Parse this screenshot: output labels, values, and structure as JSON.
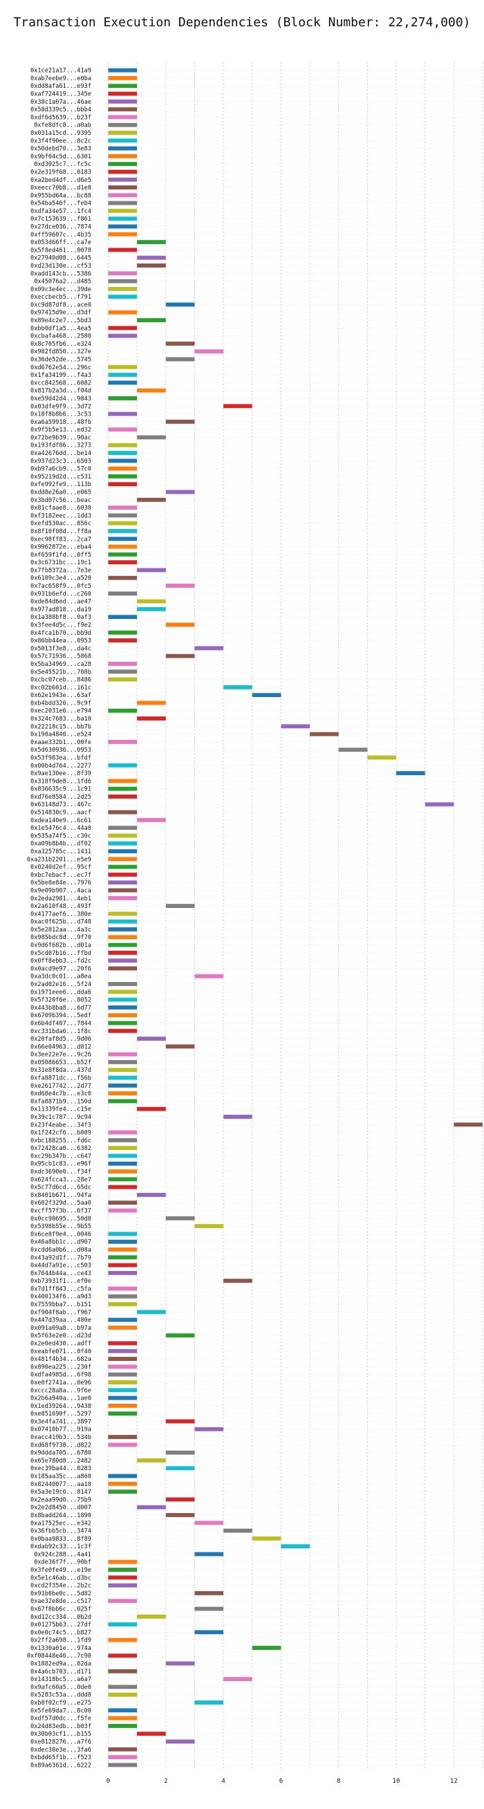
{
  "chart_data": {
    "type": "bar",
    "orientation": "horizontal",
    "title": "Transaction Execution Dependencies (Block Number: 22,274,000)",
    "xlabel": "",
    "ylabel": "",
    "xlim": [
      -0.3,
      13.0
    ],
    "xticks": [
      0,
      2,
      4,
      6,
      8,
      10,
      12
    ],
    "grid": true,
    "legend": "none",
    "bar_length": 1,
    "colors": [
      "#1f77b4",
      "#ff7f0e",
      "#2ca02c",
      "#d62728",
      "#9467bd",
      "#8c564b",
      "#e377c2",
      "#7f7f7f",
      "#bcbd22",
      "#17becf"
    ],
    "transactions": [
      {
        "tx": "0x1ce21a17...41a9",
        "start": 0
      },
      {
        "tx": "0xab7eebe9...e0ba",
        "start": 0
      },
      {
        "tx": "0xdd8afa61...e93f",
        "start": 0
      },
      {
        "tx": "0xaf724419...345e",
        "start": 0
      },
      {
        "tx": "0x38c1a07a...46ae",
        "start": 0
      },
      {
        "tx": "0x58d339c5...bbb4",
        "start": 0
      },
      {
        "tx": "0xdf6d5639...b23f",
        "start": 0
      },
      {
        "tx": "0xfe8dfc8...a0ab",
        "start": 0
      },
      {
        "tx": "0x031a15cd...9395",
        "start": 0
      },
      {
        "tx": "0x3f4f90ee...8c2c",
        "start": 0
      },
      {
        "tx": "0x50debd70...3e83",
        "start": 0
      },
      {
        "tx": "0x9bf04c5d...6301",
        "start": 0
      },
      {
        "tx": "0xd3025c7...fc5c",
        "start": 0
      },
      {
        "tx": "0x2e319f68...0183",
        "start": 0
      },
      {
        "tx": "0xa2bed4df...d6e5",
        "start": 0
      },
      {
        "tx": "0xeecc70b8...d1e8",
        "start": 0
      },
      {
        "tx": "0x955bd64a...bc88",
        "start": 0
      },
      {
        "tx": "0x54ba546f...feb4",
        "start": 0
      },
      {
        "tx": "0xdfa34e57...1fc4",
        "start": 0
      },
      {
        "tx": "0x7c153639...f861",
        "start": 0
      },
      {
        "tx": "0x27dce036...7874",
        "start": 0
      },
      {
        "tx": "0xff59607c...4b35",
        "start": 0
      },
      {
        "tx": "0x053d66ff...ca7e",
        "start": 1
      },
      {
        "tx": "0x5f8ed461...0078",
        "start": 0
      },
      {
        "tx": "0x27940d08...6445",
        "start": 1
      },
      {
        "tx": "0xd23d130e...cf53",
        "start": 1
      },
      {
        "tx": "0xadd143cb...5386",
        "start": 0
      },
      {
        "tx": "0x45076a2...d485",
        "start": 0
      },
      {
        "tx": "0x09c3e4ec...39de",
        "start": 0
      },
      {
        "tx": "0xeccbecb5...f791",
        "start": 0
      },
      {
        "tx": "0xc9d87df8...ace0",
        "start": 2
      },
      {
        "tx": "0x97415d9e...d3df",
        "start": 0
      },
      {
        "tx": "0x89e4c2e7...5bd3",
        "start": 1
      },
      {
        "tx": "0xbb0df1a5...4ea5",
        "start": 0
      },
      {
        "tx": "0xcbafa468...2580",
        "start": 0
      },
      {
        "tx": "0x8c705fb6...e324",
        "start": 2
      },
      {
        "tx": "0x982fd850...327e",
        "start": 3
      },
      {
        "tx": "0x36de52de...5745",
        "start": 2
      },
      {
        "tx": "0xd6762e54...296c",
        "start": 0
      },
      {
        "tx": "0x1fa34199...f4a3",
        "start": 0
      },
      {
        "tx": "0xcc842568...6082",
        "start": 0
      },
      {
        "tx": "0x817b2a3d...f04d",
        "start": 1
      },
      {
        "tx": "0xe59d42d4...9843",
        "start": 0
      },
      {
        "tx": "0x03dfe9f9...3d72",
        "start": 4
      },
      {
        "tx": "0x18f8b8b6...3c53",
        "start": 0
      },
      {
        "tx": "0xa6a59918...48fb",
        "start": 2
      },
      {
        "tx": "0x9f5b5e13...ed32",
        "start": 0
      },
      {
        "tx": "0x72be9b39...90ac",
        "start": 1
      },
      {
        "tx": "0x193fdf86...3273",
        "start": 0
      },
      {
        "tx": "0xa42676dd...be14",
        "start": 0
      },
      {
        "tx": "0x937d23c3...6503",
        "start": 0
      },
      {
        "tx": "0xb97a6cb9...57c0",
        "start": 0
      },
      {
        "tx": "0x95219d2d...c531",
        "start": 0
      },
      {
        "tx": "0xfe992fe9...113b",
        "start": 0
      },
      {
        "tx": "0xdd8e26a0...e065",
        "start": 2
      },
      {
        "tx": "0x3bd07c56...beac",
        "start": 1
      },
      {
        "tx": "0x81cfaae8...6030",
        "start": 0
      },
      {
        "tx": "0xf3182eec...1dd3",
        "start": 0
      },
      {
        "tx": "0xefd530ac...856c",
        "start": 0
      },
      {
        "tx": "0x8f10f08d...ff8a",
        "start": 0
      },
      {
        "tx": "0xec98ff83...2ca7",
        "start": 0
      },
      {
        "tx": "0x9962872e...eba4",
        "start": 0
      },
      {
        "tx": "0xf659f1fd...0ff5",
        "start": 0
      },
      {
        "tx": "0x3c6731bc...19c1",
        "start": 0
      },
      {
        "tx": "0x7fb8372a...7e3e",
        "start": 1
      },
      {
        "tx": "0x6109c3e4...a520",
        "start": 0
      },
      {
        "tx": "0x7ac658f9...0fc5",
        "start": 2
      },
      {
        "tx": "0x931b6efd...c260",
        "start": 0
      },
      {
        "tx": "0xde84d6ed...ae47",
        "start": 1
      },
      {
        "tx": "0x977ad818...da19",
        "start": 1
      },
      {
        "tx": "0x1a388bf8...0af3",
        "start": 0
      },
      {
        "tx": "0x3fee4d5c...f9e2",
        "start": 2
      },
      {
        "tx": "0x4fca1b70...bb9d",
        "start": 0
      },
      {
        "tx": "0x86bb44ea...0953",
        "start": 0
      },
      {
        "tx": "0x5013f3e8...da4c",
        "start": 3
      },
      {
        "tx": "0x57c71936...5868",
        "start": 2
      },
      {
        "tx": "0x5ba34969...ca28",
        "start": 0
      },
      {
        "tx": "0x5e45521b...708b",
        "start": 0
      },
      {
        "tx": "0xcbc07ceb...8486",
        "start": 0
      },
      {
        "tx": "0xc02b601d...161c",
        "start": 4
      },
      {
        "tx": "0x62e1943e...63af",
        "start": 5
      },
      {
        "tx": "0xb4bdd326...9c9f",
        "start": 1
      },
      {
        "tx": "0xec2031e6...e794",
        "start": 0
      },
      {
        "tx": "0x324c7683...ba10",
        "start": 1
      },
      {
        "tx": "0x22218c15...bb7b",
        "start": 6
      },
      {
        "tx": "0x198a4840...e524",
        "start": 7
      },
      {
        "tx": "0xaae332b1...00fe",
        "start": 0
      },
      {
        "tx": "0x5d630936...0953",
        "start": 8
      },
      {
        "tx": "0x53f983ea...bfdf",
        "start": 9
      },
      {
        "tx": "0x00b4d764...2277",
        "start": 0
      },
      {
        "tx": "0x9ae130ee...8f39",
        "start": 10
      },
      {
        "tx": "0x318f9de8...1fd6",
        "start": 0
      },
      {
        "tx": "0x836635c9...1c91",
        "start": 0
      },
      {
        "tx": "0xd76e8584...2d25",
        "start": 0
      },
      {
        "tx": "0x63148d73...467c",
        "start": 11
      },
      {
        "tx": "0x514830c9...aacf",
        "start": 0
      },
      {
        "tx": "0xdea140e9...6c61",
        "start": 1
      },
      {
        "tx": "0x1e5476c4...44a0",
        "start": 0
      },
      {
        "tx": "0x535a74f5...c30c",
        "start": 0
      },
      {
        "tx": "0xa09b8b4b...df02",
        "start": 0
      },
      {
        "tx": "0xa325785c...1431",
        "start": 0
      },
      {
        "tx": "0xa231b2201...e5e9",
        "start": 0
      },
      {
        "tx": "0x0240d2ef...95cf",
        "start": 0
      },
      {
        "tx": "0xbc7ebacf...ec7f",
        "start": 0
      },
      {
        "tx": "0x5be8e84e...7976",
        "start": 0
      },
      {
        "tx": "0x9e09b907...4aca",
        "start": 0
      },
      {
        "tx": "0x2eda2981...4eb1",
        "start": 0
      },
      {
        "tx": "0x2a610f48...493f",
        "start": 2
      },
      {
        "tx": "0x4177aef6...380e",
        "start": 0
      },
      {
        "tx": "0xac0f625b...d748",
        "start": 0
      },
      {
        "tx": "0x5e2812aa...4a3c",
        "start": 0
      },
      {
        "tx": "0x985bdc8d...9f70",
        "start": 0
      },
      {
        "tx": "0x9d6f682b...d01a",
        "start": 0
      },
      {
        "tx": "0x5cd07b16...ffbd",
        "start": 0
      },
      {
        "tx": "0x0ff8ebb3...fd2c",
        "start": 0
      },
      {
        "tx": "0x0acd9e97...20f6",
        "start": 0
      },
      {
        "tx": "0xa3dc0c01...a8ea",
        "start": 3
      },
      {
        "tx": "0x2ad02e16...5f24",
        "start": 0
      },
      {
        "tx": "0x1971eee6...dda6",
        "start": 0
      },
      {
        "tx": "0x5f320f6e...8052",
        "start": 0
      },
      {
        "tx": "0x443b8ba8...6d77",
        "start": 0
      },
      {
        "tx": "0x6709b394...5edf",
        "start": 0
      },
      {
        "tx": "0x6b4df407...7844",
        "start": 0
      },
      {
        "tx": "0xc331bda6...1f8c",
        "start": 0
      },
      {
        "tx": "0x20faf8d5...9d06",
        "start": 1
      },
      {
        "tx": "0x66e04963...d812",
        "start": 2
      },
      {
        "tx": "0x3ee22e7e...9c26",
        "start": 0
      },
      {
        "tx": "0x05086653...b52f",
        "start": 0
      },
      {
        "tx": "0x31e8f8da...437d",
        "start": 0
      },
      {
        "tx": "0xfa8871dc...f56b",
        "start": 0
      },
      {
        "tx": "0xe2617742...2d77",
        "start": 0
      },
      {
        "tx": "0xd68e4c7b...e3c0",
        "start": 0
      },
      {
        "tx": "0xfa8871b9...150d",
        "start": 0
      },
      {
        "tx": "0x11339fe4...c15e",
        "start": 1
      },
      {
        "tx": "0x39c1c787...9c94",
        "start": 4
      },
      {
        "tx": "0x23f4eabe...34f3",
        "start": 12
      },
      {
        "tx": "0x1f242cf6...b009",
        "start": 0
      },
      {
        "tx": "0xbc188255...fd6c",
        "start": 0
      },
      {
        "tx": "0x72428ca0...6382",
        "start": 0
      },
      {
        "tx": "0xc29b347b...c647",
        "start": 0
      },
      {
        "tx": "0x95cb1c83...e96f",
        "start": 0
      },
      {
        "tx": "0xdc3690e0...f34f",
        "start": 0
      },
      {
        "tx": "0x624fcca3...28e7",
        "start": 0
      },
      {
        "tx": "0x5c77d6cd...65dc",
        "start": 0
      },
      {
        "tx": "0x8401b671...94fa",
        "start": 1
      },
      {
        "tx": "0x602f329d...5aa0",
        "start": 0
      },
      {
        "tx": "0xcff57f3b...6f37",
        "start": 0
      },
      {
        "tx": "0x0cc90695...50d8",
        "start": 2
      },
      {
        "tx": "0x5398b55e...9b55",
        "start": 3
      },
      {
        "tx": "0x6ce8f9e4...0046",
        "start": 0
      },
      {
        "tx": "0x46a8bb1c...d907",
        "start": 0
      },
      {
        "tx": "0xcdd6a0b6...d08a",
        "start": 0
      },
      {
        "tx": "0x43a92d1f...7b79",
        "start": 0
      },
      {
        "tx": "0x44d7a91e...c503",
        "start": 0
      },
      {
        "tx": "0x7644b44a...ce43",
        "start": 0
      },
      {
        "tx": "0xb73931f1...ef0e",
        "start": 4
      },
      {
        "tx": "0x7d1ff843...c5fa",
        "start": 0
      },
      {
        "tx": "0x400134f6...a9d3",
        "start": 0
      },
      {
        "tx": "0x7559bba7...b151",
        "start": 0
      },
      {
        "tx": "0xf904f8ab...f967",
        "start": 1
      },
      {
        "tx": "0x447d39aa...480e",
        "start": 0
      },
      {
        "tx": "0x091a09a8...b97a",
        "start": 0
      },
      {
        "tx": "0x5f63e2e0...d23d",
        "start": 2
      },
      {
        "tx": "0x2e0ed430...adff",
        "start": 0
      },
      {
        "tx": "0xeabfe071...0f40",
        "start": 0
      },
      {
        "tx": "0x481f4b34...682a",
        "start": 0
      },
      {
        "tx": "0x890ea225...230f",
        "start": 0
      },
      {
        "tx": "0xdfa4985d...6f98",
        "start": 0
      },
      {
        "tx": "0xe0f2741a...0e96",
        "start": 0
      },
      {
        "tx": "0xccc28a8a...9f6e",
        "start": 0
      },
      {
        "tx": "0x2b6a940a...1ae0",
        "start": 0
      },
      {
        "tx": "0x1ed39264...9438",
        "start": 0
      },
      {
        "tx": "0xe851690f...5297",
        "start": 0
      },
      {
        "tx": "0x3e4fa741...3897",
        "start": 2
      },
      {
        "tx": "0x07410b77...919a",
        "start": 3
      },
      {
        "tx": "0xacc419b3...534b",
        "start": 0
      },
      {
        "tx": "0xd68f9738...d822",
        "start": 0
      },
      {
        "tx": "0x9ddda705...6780",
        "start": 2
      },
      {
        "tx": "0x65e780d8...2482",
        "start": 1
      },
      {
        "tx": "0xec39ba44...0283",
        "start": 2
      },
      {
        "tx": "0x185aa35c...a860",
        "start": 0
      },
      {
        "tx": "0x82440077...aa10",
        "start": 0
      },
      {
        "tx": "0x5a3e19c6...8147",
        "start": 0
      },
      {
        "tx": "0x2eaa99d0...75b9",
        "start": 2
      },
      {
        "tx": "0x2e2d8450...d007",
        "start": 1
      },
      {
        "tx": "0x8badd264...1890",
        "start": 2
      },
      {
        "tx": "0xa17525ec...e342",
        "start": 3
      },
      {
        "tx": "0x36fbb5cb...3474",
        "start": 4
      },
      {
        "tx": "0x0baa9833...8f89",
        "start": 5
      },
      {
        "tx": "0xdab92c33...1c3f",
        "start": 6
      },
      {
        "tx": "0x924c288...4a41",
        "start": 3
      },
      {
        "tx": "0xde36f7f...90bf",
        "start": 0
      },
      {
        "tx": "0x3fe0fe49...e19e",
        "start": 0
      },
      {
        "tx": "0x5e1c46ab...d3bc",
        "start": 0
      },
      {
        "tx": "0xcd2f354e...2b2c",
        "start": 0
      },
      {
        "tx": "0x91b0be0c...5d82",
        "start": 3
      },
      {
        "tx": "0xae32e8de...c517",
        "start": 0
      },
      {
        "tx": "0x67f8bb6c...025f",
        "start": 3
      },
      {
        "tx": "0xd12cc334...0b2d",
        "start": 1
      },
      {
        "tx": "0x01275b63...27df",
        "start": 0
      },
      {
        "tx": "0x0e0c74c5...b827",
        "start": 3
      },
      {
        "tx": "0x2ff2a698...1fd9",
        "start": 0
      },
      {
        "tx": "0x1330a01e...974a",
        "start": 5
      },
      {
        "tx": "0xf08448e46...7c90",
        "start": 0
      },
      {
        "tx": "0x1882ed9a...02da",
        "start": 2
      },
      {
        "tx": "0x4a6cb703...d171",
        "start": 0
      },
      {
        "tx": "0x14318bc5...a6a7",
        "start": 4
      },
      {
        "tx": "0x9afc60a5...0de0",
        "start": 0
      },
      {
        "tx": "0x5283c53a...ddd8",
        "start": 0
      },
      {
        "tx": "0xb8f02cf9...e275",
        "start": 3
      },
      {
        "tx": "0x5fe69da7...8c00",
        "start": 0
      },
      {
        "tx": "0xdf57d0dc...f5fe",
        "start": 0
      },
      {
        "tx": "0x24d83edb...b03f",
        "start": 0
      },
      {
        "tx": "0x30b03cf1...b155",
        "start": 1
      },
      {
        "tx": "0xe8128276...a7f6",
        "start": 2
      },
      {
        "tx": "0xdec38e3e...3fa6",
        "start": 0
      },
      {
        "tx": "0xbdd65f1b...f523",
        "start": 0
      },
      {
        "tx": "0x89a6361d...6222",
        "start": 0
      }
    ]
  }
}
